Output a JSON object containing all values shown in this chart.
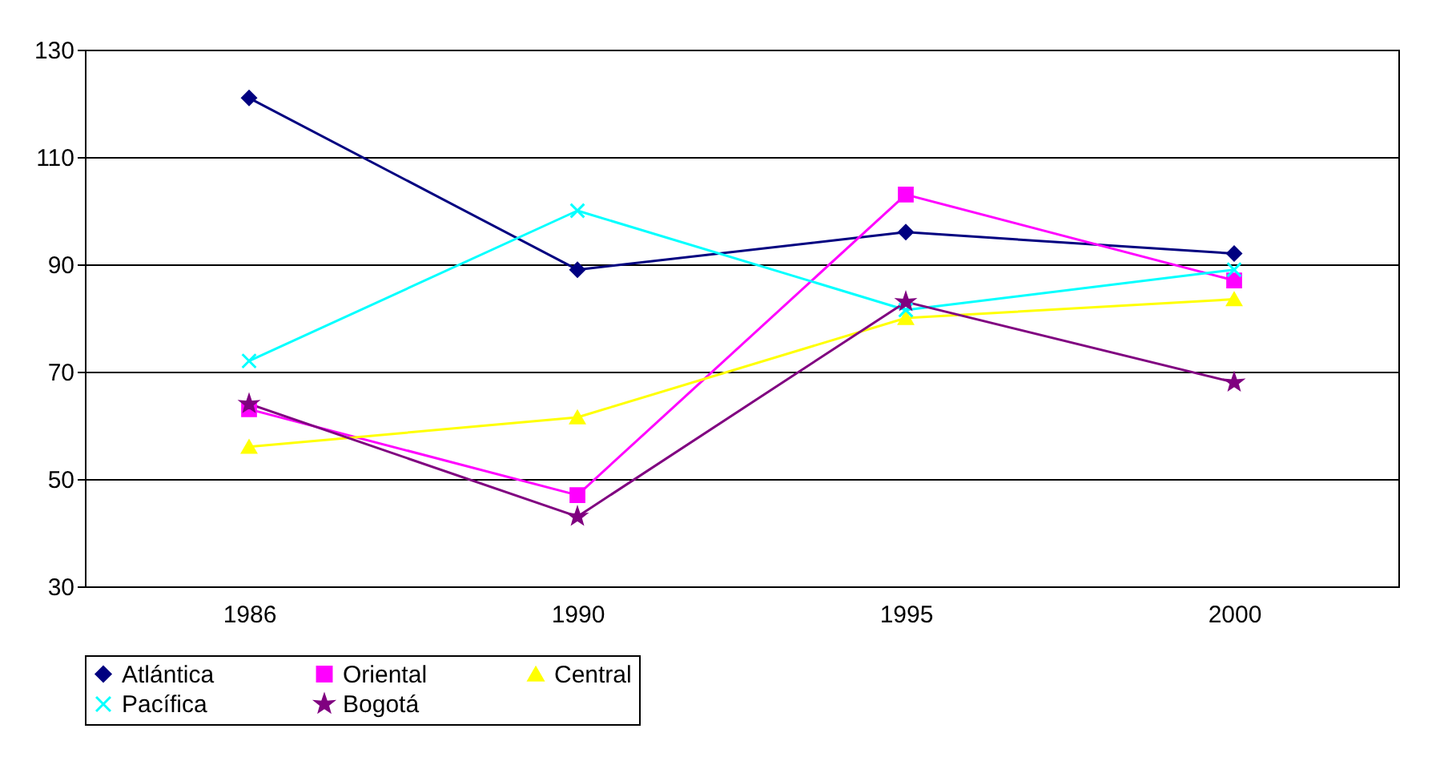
{
  "chart_data": {
    "type": "line",
    "categories": [
      "1986",
      "1990",
      "1995",
      "2000"
    ],
    "ylim": [
      30,
      130
    ],
    "yticks": [
      30,
      50,
      70,
      90,
      110,
      130
    ],
    "grid": "y",
    "legend": "bottom",
    "series": [
      {
        "name": "Atlántica",
        "color": "#000080",
        "marker": "diamond",
        "values": [
          121,
          89,
          96,
          92
        ]
      },
      {
        "name": "Oriental",
        "color": "#ff00ff",
        "marker": "square",
        "values": [
          63,
          47,
          103,
          87
        ]
      },
      {
        "name": "Central",
        "color": "#ffff00",
        "marker": "triangle",
        "values": [
          56,
          61.5,
          80,
          83.5
        ]
      },
      {
        "name": "Pacífica",
        "color": "#00ffff",
        "marker": "cross",
        "values": [
          72,
          100,
          81.5,
          89
        ]
      },
      {
        "name": "Bogotá",
        "color": "#800080",
        "marker": "star",
        "values": [
          64,
          43,
          83,
          68
        ]
      }
    ]
  }
}
